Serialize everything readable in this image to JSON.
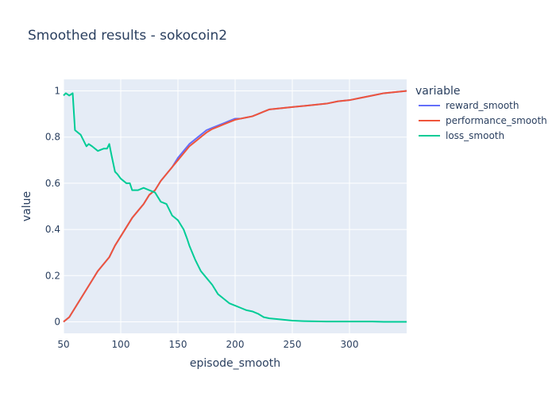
{
  "chart_data": {
    "type": "line",
    "title": "Smoothed results - sokocoin2",
    "xlabel": "episode_smooth",
    "ylabel": "value",
    "xlim": [
      50,
      350
    ],
    "ylim": [
      -0.05,
      1.05
    ],
    "xticks": [
      50,
      100,
      150,
      200,
      250,
      300
    ],
    "yticks": [
      0,
      0.2,
      0.4,
      0.6,
      0.8,
      1
    ],
    "ytick_labels": [
      "0",
      "0.2",
      "0.4",
      "0.6",
      "0.8",
      "1"
    ],
    "grid": true,
    "legend": {
      "title": "variable",
      "placement": "right"
    },
    "series": [
      {
        "name": "reward_smooth",
        "color": "#636efa",
        "x": [
          50,
          55,
          60,
          65,
          70,
          75,
          80,
          85,
          90,
          95,
          100,
          105,
          110,
          115,
          120,
          125,
          130,
          135,
          140,
          145,
          150,
          155,
          160,
          165,
          170,
          175,
          180,
          185,
          190,
          195,
          200,
          205,
          210,
          215,
          220,
          225,
          230,
          240,
          250,
          260,
          270,
          280,
          290,
          300,
          310,
          320,
          330,
          340,
          350
        ],
        "values": [
          0.0,
          0.02,
          0.06,
          0.1,
          0.14,
          0.18,
          0.22,
          0.25,
          0.28,
          0.33,
          0.37,
          0.41,
          0.45,
          0.48,
          0.51,
          0.55,
          0.57,
          0.61,
          0.64,
          0.67,
          0.71,
          0.74,
          0.77,
          0.79,
          0.81,
          0.83,
          0.84,
          0.85,
          0.86,
          0.87,
          0.88,
          0.88,
          0.885,
          0.89,
          0.9,
          0.91,
          0.92,
          0.925,
          0.93,
          0.935,
          0.94,
          0.945,
          0.955,
          0.96,
          0.97,
          0.98,
          0.99,
          0.995,
          1.0
        ]
      },
      {
        "name": "performance_smooth",
        "color": "#ef553b",
        "x": [
          50,
          55,
          60,
          65,
          70,
          75,
          80,
          85,
          90,
          95,
          100,
          105,
          110,
          115,
          120,
          125,
          130,
          135,
          140,
          145,
          150,
          155,
          160,
          165,
          170,
          175,
          180,
          185,
          190,
          195,
          200,
          205,
          210,
          215,
          220,
          225,
          230,
          240,
          250,
          260,
          270,
          280,
          290,
          300,
          310,
          320,
          330,
          340,
          350
        ],
        "values": [
          0.0,
          0.02,
          0.06,
          0.1,
          0.14,
          0.18,
          0.22,
          0.25,
          0.28,
          0.33,
          0.37,
          0.41,
          0.45,
          0.48,
          0.51,
          0.55,
          0.57,
          0.61,
          0.64,
          0.67,
          0.7,
          0.73,
          0.76,
          0.78,
          0.8,
          0.82,
          0.835,
          0.845,
          0.855,
          0.865,
          0.875,
          0.88,
          0.885,
          0.89,
          0.9,
          0.91,
          0.92,
          0.925,
          0.93,
          0.935,
          0.94,
          0.945,
          0.955,
          0.96,
          0.97,
          0.98,
          0.99,
          0.995,
          1.0
        ]
      },
      {
        "name": "loss_smooth",
        "color": "#00cc96",
        "x": [
          50,
          52,
          55,
          58,
          60,
          65,
          70,
          72,
          75,
          80,
          85,
          88,
          90,
          92,
          95,
          97,
          100,
          105,
          108,
          110,
          115,
          120,
          125,
          130,
          135,
          140,
          145,
          150,
          155,
          158,
          160,
          165,
          168,
          170,
          175,
          180,
          185,
          190,
          195,
          200,
          205,
          210,
          215,
          220,
          225,
          230,
          240,
          250,
          260,
          270,
          280,
          300,
          320,
          330,
          340,
          350
        ],
        "values": [
          0.98,
          0.99,
          0.98,
          0.99,
          0.83,
          0.81,
          0.76,
          0.77,
          0.76,
          0.74,
          0.75,
          0.75,
          0.77,
          0.72,
          0.65,
          0.64,
          0.62,
          0.6,
          0.6,
          0.57,
          0.57,
          0.58,
          0.57,
          0.56,
          0.52,
          0.51,
          0.46,
          0.44,
          0.4,
          0.36,
          0.33,
          0.27,
          0.24,
          0.22,
          0.19,
          0.16,
          0.12,
          0.1,
          0.08,
          0.07,
          0.06,
          0.05,
          0.045,
          0.035,
          0.02,
          0.015,
          0.01,
          0.005,
          0.003,
          0.002,
          0.001,
          0.001,
          0.001,
          0.0,
          0.0,
          0.0
        ]
      }
    ]
  }
}
